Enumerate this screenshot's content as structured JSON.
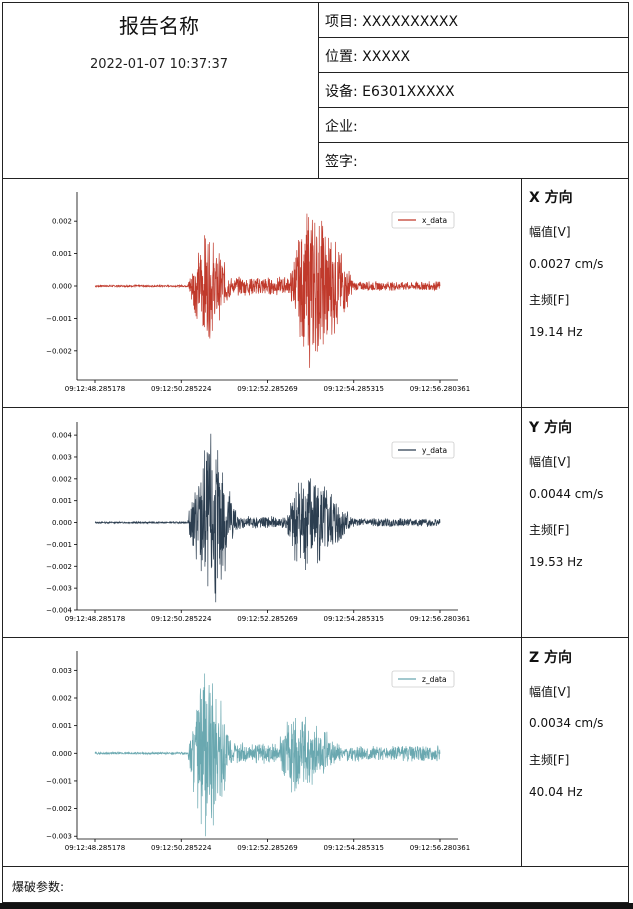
{
  "report": {
    "title": "报告名称",
    "datetime": "2022-01-07 10:37:37"
  },
  "info": [
    {
      "label": "项目:",
      "value": "XXXXXXXXXX"
    },
    {
      "label": "位置:",
      "value": "XXXXX"
    },
    {
      "label": "设备:",
      "value": "E6301XXXXX"
    },
    {
      "label": "企业:",
      "value": ""
    },
    {
      "label": "签字:",
      "value": ""
    }
  ],
  "sections": [
    {
      "heading": "X 方向",
      "amp_label": "幅值[V]",
      "amp_value": "0.0027 cm/s",
      "freq_label": "主频[F]",
      "freq_value": "19.14 Hz"
    },
    {
      "heading": "Y 方向",
      "amp_label": "幅值[V]",
      "amp_value": "0.0044 cm/s",
      "freq_label": "主频[F]",
      "freq_value": "19.53 Hz"
    },
    {
      "heading": "Z 方向",
      "amp_label": "幅值[V]",
      "amp_value": "0.0034 cm/s",
      "freq_label": "主频[F]",
      "freq_value": "40.04 Hz"
    }
  ],
  "footer": {
    "blast_params_label": "爆破参数:"
  },
  "chart_data": [
    {
      "type": "line",
      "series": [
        {
          "name": "x_data",
          "color": "#c0392b"
        }
      ],
      "x_ticks": [
        "09:12:48.285178",
        "09:12:50.285224",
        "09:12:52.285269",
        "09:12:54.285315",
        "09:12:56.280361"
      ],
      "y_ticks": [
        -0.002,
        -0.001,
        0.0,
        0.001,
        0.002
      ],
      "y_tick_labels": [
        "−0.002",
        "−0.001",
        "0.000",
        "0.001",
        "0.002"
      ],
      "ylim": [
        -0.0029,
        0.0029
      ],
      "legend": "top-right",
      "envelope": [
        {
          "start": 0.0,
          "end": 2.15,
          "amp": 3e-05
        },
        {
          "start": 2.15,
          "end": 3.2,
          "amp": 0.0018,
          "peak": 2.6
        },
        {
          "start": 3.2,
          "end": 4.5,
          "amp": 0.0003
        },
        {
          "start": 4.5,
          "end": 6.0,
          "amp": 0.0027,
          "peak": 5.0
        },
        {
          "start": 6.0,
          "end": 8.0,
          "amp": 0.00015
        }
      ]
    },
    {
      "type": "line",
      "series": [
        {
          "name": "y_data",
          "color": "#2c3e50"
        }
      ],
      "x_ticks": [
        "09:12:48.285178",
        "09:12:50.285224",
        "09:12:52.285269",
        "09:12:54.285315",
        "09:12:56.280361"
      ],
      "y_ticks": [
        -0.004,
        -0.003,
        -0.002,
        -0.001,
        0.0,
        0.001,
        0.002,
        0.003,
        0.004
      ],
      "y_tick_labels": [
        "−0.004",
        "−0.003",
        "−0.002",
        "−0.001",
        "0.000",
        "0.001",
        "0.002",
        "0.003",
        "0.004"
      ],
      "ylim": [
        -0.004,
        0.0046
      ],
      "legend": "top-right",
      "envelope": [
        {
          "start": 0.0,
          "end": 2.15,
          "amp": 4e-05
        },
        {
          "start": 2.15,
          "end": 3.3,
          "amp": 0.0044,
          "peak": 2.7
        },
        {
          "start": 3.3,
          "end": 4.4,
          "amp": 0.0003
        },
        {
          "start": 4.4,
          "end": 6.0,
          "amp": 0.0028,
          "peak": 4.8
        },
        {
          "start": 6.0,
          "end": 8.0,
          "amp": 0.0002
        }
      ]
    },
    {
      "type": "line",
      "series": [
        {
          "name": "z_data",
          "color": "#6aa8b0"
        }
      ],
      "x_ticks": [
        "09:12:48.285178",
        "09:12:50.285224",
        "09:12:52.285269",
        "09:12:54.285315",
        "09:12:56.280361"
      ],
      "y_ticks": [
        -0.003,
        -0.002,
        -0.001,
        0.0,
        0.001,
        0.002,
        0.003
      ],
      "y_tick_labels": [
        "−0.003",
        "−0.002",
        "−0.001",
        "0.000",
        "0.001",
        "0.002",
        "0.003"
      ],
      "ylim": [
        -0.0031,
        0.0037
      ],
      "legend": "top-right",
      "envelope": [
        {
          "start": 0.0,
          "end": 2.15,
          "amp": 4e-05
        },
        {
          "start": 2.15,
          "end": 3.2,
          "amp": 0.0034,
          "peak": 2.6
        },
        {
          "start": 3.2,
          "end": 4.2,
          "amp": 0.0004
        },
        {
          "start": 4.2,
          "end": 5.8,
          "amp": 0.0017,
          "peak": 4.6
        },
        {
          "start": 5.8,
          "end": 8.0,
          "amp": 0.0003
        }
      ]
    }
  ]
}
